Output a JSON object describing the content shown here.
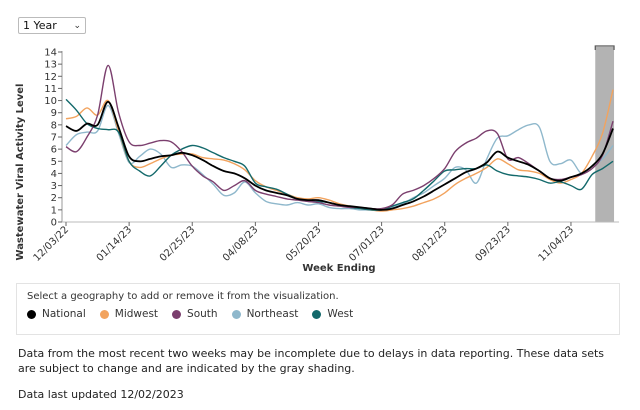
{
  "controls": {
    "range_selected": "1 Year",
    "chevron_icon": "chevron-down-icon"
  },
  "legend": {
    "prompt": "Select a geography to add or remove it from the visualization.",
    "items": [
      {
        "label": "National",
        "color": "#000000"
      },
      {
        "label": "Midwest",
        "color": "#f2a35e"
      },
      {
        "label": "South",
        "color": "#7b3f6e"
      },
      {
        "label": "Northeast",
        "color": "#8fb8cc"
      },
      {
        "label": "West",
        "color": "#13696b"
      }
    ]
  },
  "notes": {
    "incomplete": "Data from the most recent two weeks may be incomplete due to delays in data reporting. These data sets are subject to change and are indicated by the gray shading.",
    "updated": "Data last updated 12/02/2023"
  },
  "chart_data": {
    "type": "line",
    "title": "",
    "xlabel": "Week Ending",
    "ylabel": "Wastewater Viral Activity Level",
    "ylim": [
      0,
      14
    ],
    "yticks": [
      0,
      1,
      2,
      3,
      4,
      5,
      6,
      7,
      8,
      9,
      10,
      11,
      12,
      13,
      14
    ],
    "x_tick_labels": [
      "12/03/22",
      "01/14/23",
      "02/25/23",
      "04/08/23",
      "05/20/23",
      "07/01/23",
      "08/12/23",
      "09/23/23",
      "11/04/23"
    ],
    "x_tick_week_index": [
      0,
      6,
      12,
      18,
      24,
      30,
      36,
      42,
      48
    ],
    "num_weeks": 53,
    "incomplete_weeks": [
      51,
      52
    ],
    "grid": false,
    "legend_position": "bottom",
    "series": [
      {
        "name": "National",
        "color": "#000000",
        "values": [
          7.9,
          7.5,
          8.1,
          8.0,
          9.9,
          7.8,
          5.4,
          5.0,
          5.2,
          5.4,
          5.5,
          5.7,
          5.5,
          5.1,
          4.6,
          4.2,
          4.0,
          3.6,
          3.0,
          2.6,
          2.4,
          2.2,
          1.9,
          1.8,
          1.8,
          1.6,
          1.4,
          1.3,
          1.2,
          1.1,
          1.0,
          1.1,
          1.4,
          1.7,
          2.1,
          2.6,
          3.1,
          3.6,
          4.1,
          4.4,
          4.9,
          5.8,
          5.3,
          5.0,
          4.7,
          4.2,
          3.6,
          3.4,
          3.7,
          4.0,
          4.6,
          5.6,
          7.7
        ]
      },
      {
        "name": "Midwest",
        "color": "#f2a35e",
        "values": [
          8.5,
          8.7,
          9.4,
          8.8,
          10.0,
          7.5,
          5.0,
          4.5,
          4.8,
          5.2,
          5.5,
          5.6,
          5.6,
          5.3,
          5.2,
          5.1,
          4.8,
          4.3,
          3.4,
          2.9,
          2.6,
          2.3,
          2.0,
          1.9,
          2.0,
          1.8,
          1.5,
          1.3,
          1.1,
          1.0,
          0.9,
          1.0,
          1.1,
          1.3,
          1.6,
          1.9,
          2.4,
          3.1,
          3.6,
          4.0,
          4.5,
          5.2,
          4.8,
          4.3,
          4.2,
          4.0,
          3.5,
          3.2,
          3.5,
          4.0,
          5.4,
          7.3,
          10.9
        ]
      },
      {
        "name": "South",
        "color": "#7b3f6e",
        "values": [
          6.2,
          5.8,
          7.0,
          8.8,
          12.9,
          9.0,
          6.6,
          6.3,
          6.5,
          6.7,
          6.6,
          5.8,
          4.6,
          3.8,
          3.3,
          2.6,
          3.0,
          3.4,
          2.6,
          2.3,
          2.1,
          1.9,
          1.8,
          1.7,
          1.6,
          1.4,
          1.3,
          1.2,
          1.2,
          1.1,
          1.1,
          1.4,
          2.3,
          2.6,
          3.0,
          3.6,
          4.4,
          5.8,
          6.5,
          6.9,
          7.5,
          7.3,
          5.2,
          5.3,
          4.8,
          4.2,
          3.6,
          3.5,
          3.7,
          3.9,
          4.4,
          5.5,
          8.3
        ]
      },
      {
        "name": "Northeast",
        "color": "#8fb8cc",
        "values": [
          6.3,
          7.2,
          7.4,
          7.5,
          9.6,
          7.3,
          4.9,
          5.4,
          6.0,
          5.6,
          4.5,
          4.7,
          4.6,
          3.9,
          3.1,
          2.2,
          2.4,
          3.3,
          2.4,
          1.7,
          1.5,
          1.4,
          1.6,
          1.4,
          1.5,
          1.2,
          1.1,
          1.1,
          1.0,
          1.0,
          1.0,
          1.2,
          1.5,
          2.0,
          2.4,
          3.0,
          3.6,
          4.5,
          4.3,
          3.2,
          5.2,
          6.9,
          7.1,
          7.6,
          8.0,
          7.8,
          5.0,
          4.8,
          5.1,
          4.0,
          4.6,
          5.2,
          6.3
        ]
      },
      {
        "name": "West",
        "color": "#13696b",
        "values": [
          10.1,
          9.2,
          8.1,
          7.7,
          7.6,
          7.4,
          5.0,
          4.2,
          3.8,
          4.6,
          5.5,
          6.0,
          6.3,
          6.1,
          5.7,
          5.3,
          5.0,
          4.6,
          3.2,
          2.9,
          2.7,
          2.3,
          1.9,
          1.7,
          1.7,
          1.6,
          1.4,
          1.2,
          1.1,
          1.0,
          1.0,
          1.3,
          1.6,
          1.9,
          2.6,
          3.4,
          4.2,
          4.3,
          4.4,
          4.4,
          4.7,
          4.2,
          3.9,
          3.8,
          3.7,
          3.5,
          3.2,
          3.3,
          3.0,
          2.7,
          3.9,
          4.4,
          5.0
        ]
      }
    ]
  }
}
